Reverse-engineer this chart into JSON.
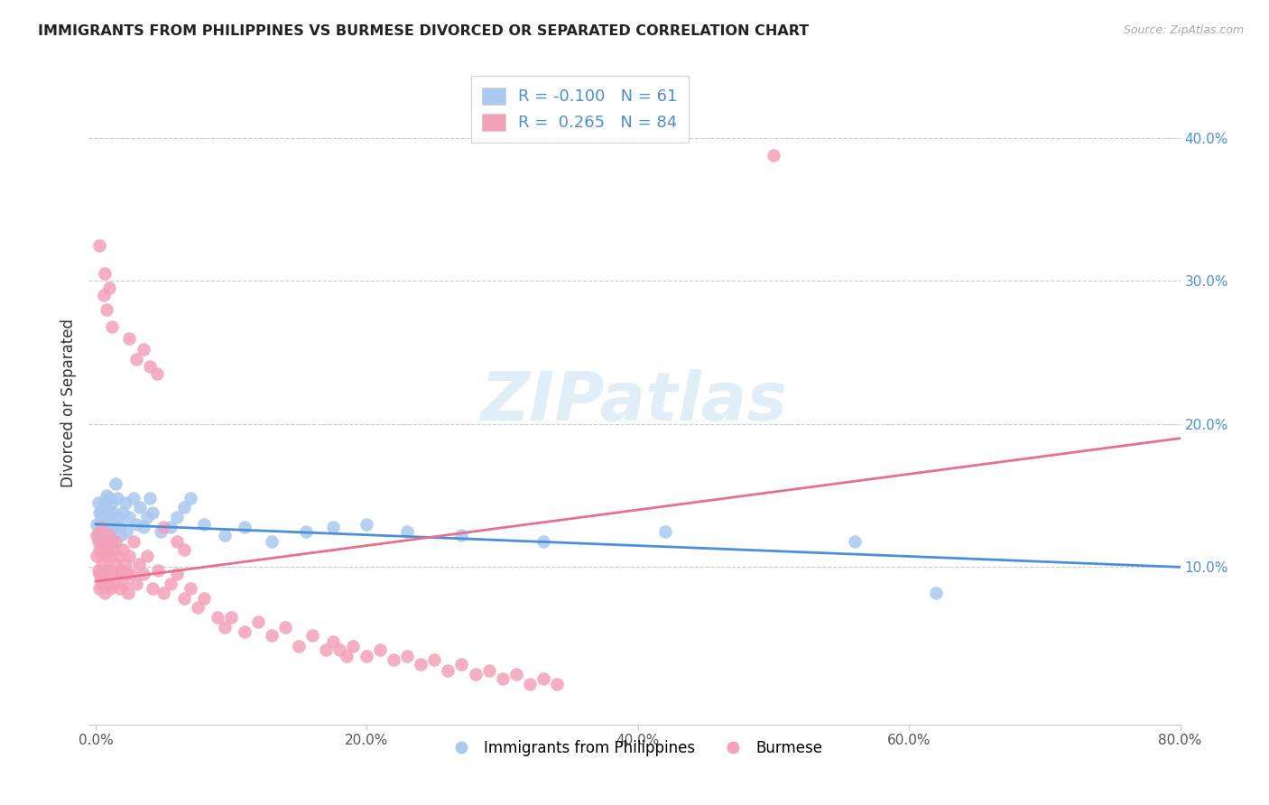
{
  "title": "IMMIGRANTS FROM PHILIPPINES VS BURMESE DIVORCED OR SEPARATED CORRELATION CHART",
  "source": "Source: ZipAtlas.com",
  "xlabel_ticks": [
    "0.0%",
    "20.0%",
    "40.0%",
    "60.0%",
    "80.0%"
  ],
  "xlabel_tick_vals": [
    0.0,
    0.2,
    0.4,
    0.6,
    0.8
  ],
  "ylabel": "Divorced or Separated",
  "ylabel_ticks": [
    "10.0%",
    "20.0%",
    "30.0%",
    "40.0%"
  ],
  "ylabel_tick_vals": [
    0.1,
    0.2,
    0.3,
    0.4
  ],
  "xlim": [
    -0.005,
    0.8
  ],
  "ylim": [
    -0.01,
    0.44
  ],
  "blue_R": -0.1,
  "blue_N": 61,
  "pink_R": 0.265,
  "pink_N": 84,
  "blue_color": "#aac8f0",
  "pink_color": "#f4a0b8",
  "blue_line_color": "#4a90d9",
  "pink_line_color": "#e8708a",
  "watermark": "ZIPatlas",
  "legend_label_blue": "Immigrants from Philippines",
  "legend_label_pink": "Burmese",
  "blue_line_x0": 0.0,
  "blue_line_y0": 0.13,
  "blue_line_x1": 0.8,
  "blue_line_y1": 0.1,
  "pink_line_x0": 0.0,
  "pink_line_y0": 0.09,
  "pink_line_x1": 0.8,
  "pink_line_y1": 0.19,
  "blue_scatter_x": [
    0.001,
    0.002,
    0.002,
    0.003,
    0.003,
    0.004,
    0.004,
    0.004,
    0.005,
    0.005,
    0.005,
    0.006,
    0.006,
    0.007,
    0.007,
    0.008,
    0.008,
    0.009,
    0.009,
    0.01,
    0.01,
    0.011,
    0.011,
    0.012,
    0.012,
    0.013,
    0.014,
    0.015,
    0.016,
    0.017,
    0.018,
    0.019,
    0.02,
    0.022,
    0.023,
    0.025,
    0.028,
    0.03,
    0.033,
    0.035,
    0.038,
    0.04,
    0.042,
    0.048,
    0.055,
    0.06,
    0.065,
    0.07,
    0.08,
    0.095,
    0.11,
    0.13,
    0.155,
    0.175,
    0.2,
    0.23,
    0.27,
    0.33,
    0.42,
    0.56,
    0.62
  ],
  "blue_scatter_y": [
    0.13,
    0.145,
    0.125,
    0.138,
    0.12,
    0.135,
    0.128,
    0.122,
    0.14,
    0.132,
    0.118,
    0.145,
    0.128,
    0.135,
    0.122,
    0.15,
    0.118,
    0.14,
    0.125,
    0.148,
    0.122,
    0.135,
    0.118,
    0.145,
    0.128,
    0.138,
    0.13,
    0.158,
    0.148,
    0.135,
    0.128,
    0.122,
    0.138,
    0.145,
    0.125,
    0.135,
    0.148,
    0.13,
    0.142,
    0.128,
    0.135,
    0.148,
    0.138,
    0.125,
    0.128,
    0.135,
    0.142,
    0.148,
    0.13,
    0.122,
    0.128,
    0.118,
    0.125,
    0.128,
    0.13,
    0.125,
    0.122,
    0.118,
    0.125,
    0.118,
    0.082
  ],
  "pink_scatter_x": [
    0.001,
    0.001,
    0.002,
    0.002,
    0.003,
    0.003,
    0.003,
    0.004,
    0.004,
    0.005,
    0.005,
    0.005,
    0.006,
    0.006,
    0.007,
    0.007,
    0.008,
    0.008,
    0.009,
    0.009,
    0.01,
    0.01,
    0.011,
    0.011,
    0.012,
    0.012,
    0.013,
    0.013,
    0.014,
    0.015,
    0.016,
    0.017,
    0.018,
    0.019,
    0.02,
    0.021,
    0.022,
    0.023,
    0.024,
    0.025,
    0.026,
    0.028,
    0.03,
    0.032,
    0.035,
    0.038,
    0.042,
    0.046,
    0.05,
    0.055,
    0.06,
    0.065,
    0.07,
    0.075,
    0.08,
    0.09,
    0.095,
    0.1,
    0.11,
    0.12,
    0.13,
    0.14,
    0.15,
    0.16,
    0.17,
    0.175,
    0.18,
    0.185,
    0.19,
    0.2,
    0.21,
    0.22,
    0.23,
    0.24,
    0.25,
    0.26,
    0.27,
    0.28,
    0.29,
    0.3,
    0.31,
    0.32,
    0.33,
    0.34
  ],
  "pink_scatter_y": [
    0.122,
    0.108,
    0.118,
    0.098,
    0.112,
    0.095,
    0.085,
    0.11,
    0.092,
    0.128,
    0.102,
    0.088,
    0.118,
    0.095,
    0.108,
    0.082,
    0.118,
    0.098,
    0.112,
    0.088,
    0.122,
    0.098,
    0.108,
    0.085,
    0.118,
    0.095,
    0.112,
    0.088,
    0.102,
    0.118,
    0.095,
    0.108,
    0.085,
    0.098,
    0.112,
    0.088,
    0.102,
    0.095,
    0.082,
    0.108,
    0.095,
    0.118,
    0.088,
    0.102,
    0.095,
    0.108,
    0.085,
    0.098,
    0.082,
    0.088,
    0.095,
    0.078,
    0.085,
    0.072,
    0.078,
    0.065,
    0.058,
    0.065,
    0.055,
    0.062,
    0.052,
    0.058,
    0.045,
    0.052,
    0.042,
    0.048,
    0.042,
    0.038,
    0.045,
    0.038,
    0.042,
    0.035,
    0.038,
    0.032,
    0.035,
    0.028,
    0.032,
    0.025,
    0.028,
    0.022,
    0.025,
    0.018,
    0.022,
    0.018
  ],
  "pink_outlier_x": [
    0.003,
    0.006,
    0.007,
    0.008,
    0.01,
    0.012,
    0.025,
    0.03,
    0.035,
    0.04,
    0.045,
    0.05,
    0.06,
    0.065,
    0.5
  ],
  "pink_outlier_y": [
    0.325,
    0.29,
    0.305,
    0.28,
    0.295,
    0.268,
    0.26,
    0.245,
    0.252,
    0.24,
    0.235,
    0.128,
    0.118,
    0.112,
    0.388
  ]
}
